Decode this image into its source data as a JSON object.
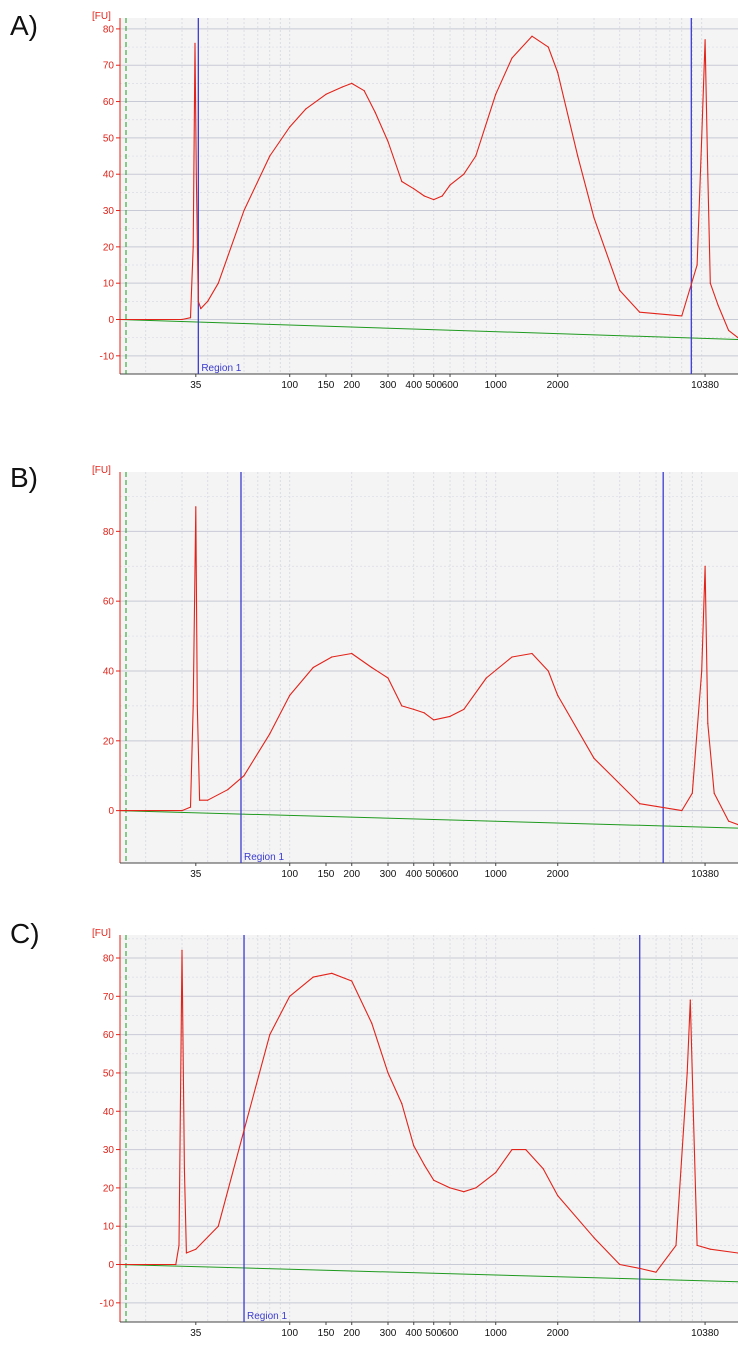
{
  "panels": [
    {
      "label": "A)"
    },
    {
      "label": "B)"
    },
    {
      "label": "C)"
    }
  ],
  "colors": {
    "trace": "#e2231a",
    "baseline": "#1f9a1f",
    "region_markers": "#3b3bd1",
    "axis_ticks": "#e2231a",
    "plot_background": "#f4f4f4",
    "gridline": "#c8cad6"
  },
  "chart_data": [
    {
      "type": "line",
      "panel": "A)",
      "y_unit_label": "[FU]",
      "x_tick_labels": [
        "35",
        "100",
        "150",
        "200",
        "300",
        "400",
        "500",
        "600",
        "1000",
        "2000",
        "10380"
      ],
      "x_scale": "log",
      "y_ticks": [
        -10,
        0,
        10,
        20,
        30,
        40,
        50,
        60,
        70,
        80
      ],
      "ylim": [
        -15,
        83
      ],
      "region_label": "Region 1",
      "region_bounds": [
        36,
        8900
      ],
      "baseline": [
        [
          15,
          0
        ],
        [
          15000,
          -5.5
        ]
      ],
      "series": [
        {
          "points": [
            [
              15,
              0
            ],
            [
              20,
              0
            ],
            [
              30,
              0
            ],
            [
              33,
              0.5
            ],
            [
              34,
              20
            ],
            [
              34.7,
              76
            ],
            [
              35.2,
              40
            ],
            [
              36,
              5
            ],
            [
              37,
              3
            ],
            [
              40,
              5
            ],
            [
              45,
              10
            ],
            [
              60,
              30
            ],
            [
              80,
              45
            ],
            [
              100,
              53
            ],
            [
              120,
              58
            ],
            [
              150,
              62
            ],
            [
              180,
              64
            ],
            [
              200,
              65
            ],
            [
              230,
              63
            ],
            [
              260,
              57
            ],
            [
              300,
              49
            ],
            [
              350,
              38
            ],
            [
              400,
              36
            ],
            [
              450,
              34
            ],
            [
              500,
              33
            ],
            [
              550,
              34
            ],
            [
              600,
              37
            ],
            [
              700,
              40
            ],
            [
              800,
              45
            ],
            [
              1000,
              62
            ],
            [
              1200,
              72
            ],
            [
              1500,
              78
            ],
            [
              1800,
              75
            ],
            [
              2000,
              68
            ],
            [
              2500,
              45
            ],
            [
              3000,
              28
            ],
            [
              4000,
              8
            ],
            [
              5000,
              2
            ],
            [
              8000,
              1
            ],
            [
              9500,
              15
            ],
            [
              10000,
              50
            ],
            [
              10380,
              77
            ],
            [
              10700,
              40
            ],
            [
              11000,
              10
            ],
            [
              12000,
              4
            ],
            [
              13500,
              -3
            ],
            [
              15000,
              -5
            ]
          ]
        }
      ]
    },
    {
      "type": "line",
      "panel": "B)",
      "y_unit_label": "[FU]",
      "x_tick_labels": [
        "35",
        "100",
        "150",
        "200",
        "300",
        "400",
        "500",
        "600",
        "1000",
        "2000",
        "10380"
      ],
      "x_scale": "log",
      "y_ticks": [
        0,
        20,
        40,
        60,
        80
      ],
      "ylim": [
        -15,
        97
      ],
      "region_label": "Region 1",
      "region_bounds": [
        58,
        6500
      ],
      "baseline": [
        [
          15,
          0
        ],
        [
          15000,
          -5
        ]
      ],
      "series": [
        {
          "points": [
            [
              15,
              0
            ],
            [
              20,
              0
            ],
            [
              30,
              0
            ],
            [
              33,
              1
            ],
            [
              34,
              30
            ],
            [
              35,
              87
            ],
            [
              35.6,
              30
            ],
            [
              36.5,
              3
            ],
            [
              40,
              3
            ],
            [
              50,
              6
            ],
            [
              60,
              10
            ],
            [
              80,
              22
            ],
            [
              100,
              33
            ],
            [
              130,
              41
            ],
            [
              160,
              44
            ],
            [
              200,
              45
            ],
            [
              250,
              41
            ],
            [
              300,
              38
            ],
            [
              350,
              30
            ],
            [
              400,
              29
            ],
            [
              450,
              28
            ],
            [
              500,
              26
            ],
            [
              600,
              27
            ],
            [
              700,
              29
            ],
            [
              900,
              38
            ],
            [
              1200,
              44
            ],
            [
              1500,
              45
            ],
            [
              1800,
              40
            ],
            [
              2000,
              33
            ],
            [
              3000,
              15
            ],
            [
              5000,
              2
            ],
            [
              8000,
              0
            ],
            [
              9000,
              5
            ],
            [
              10000,
              40
            ],
            [
              10380,
              70
            ],
            [
              10700,
              25
            ],
            [
              11500,
              5
            ],
            [
              13500,
              -3
            ],
            [
              15000,
              -4
            ]
          ]
        }
      ]
    },
    {
      "type": "line",
      "panel": "C)",
      "y_unit_label": "[FU]",
      "x_tick_labels": [
        "35",
        "100",
        "150",
        "200",
        "300",
        "400",
        "500",
        "600",
        "1000",
        "2000",
        "10380"
      ],
      "x_scale": "log",
      "y_ticks": [
        -10,
        0,
        10,
        20,
        30,
        40,
        50,
        60,
        70,
        80
      ],
      "ylim": [
        -15,
        86
      ],
      "region_label": "Region 1",
      "region_bounds": [
        60,
        5000
      ],
      "baseline": [
        [
          15,
          0
        ],
        [
          15000,
          -4.5
        ]
      ],
      "series": [
        {
          "points": [
            [
              15,
              0
            ],
            [
              20,
              0
            ],
            [
              28,
              0
            ],
            [
              29,
              5
            ],
            [
              30,
              82
            ],
            [
              30.8,
              25
            ],
            [
              31.5,
              3
            ],
            [
              35,
              4
            ],
            [
              45,
              10
            ],
            [
              60,
              35
            ],
            [
              80,
              60
            ],
            [
              100,
              70
            ],
            [
              130,
              75
            ],
            [
              160,
              76
            ],
            [
              200,
              74
            ],
            [
              250,
              63
            ],
            [
              300,
              50
            ],
            [
              350,
              42
            ],
            [
              400,
              31
            ],
            [
              450,
              26
            ],
            [
              500,
              22
            ],
            [
              600,
              20
            ],
            [
              700,
              19
            ],
            [
              800,
              20
            ],
            [
              1000,
              24
            ],
            [
              1200,
              30
            ],
            [
              1400,
              30
            ],
            [
              1700,
              25
            ],
            [
              2000,
              18
            ],
            [
              3000,
              7
            ],
            [
              4000,
              0
            ],
            [
              5000,
              -1
            ],
            [
              6000,
              -2
            ],
            [
              7500,
              5
            ],
            [
              8500,
              50
            ],
            [
              8800,
              69
            ],
            [
              9100,
              40
            ],
            [
              9500,
              5
            ],
            [
              11000,
              4
            ],
            [
              15000,
              3
            ]
          ]
        }
      ]
    }
  ]
}
